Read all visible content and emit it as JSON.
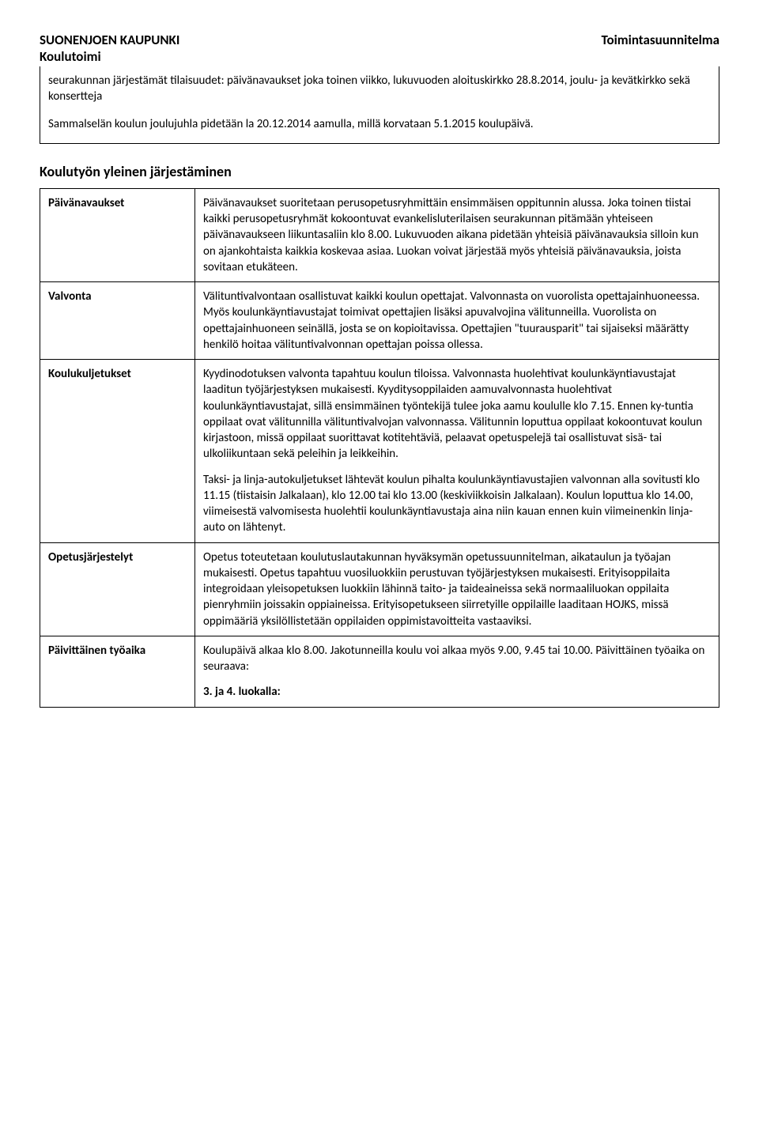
{
  "header": {
    "left_top": "SUONENJOEN KAUPUNKI",
    "right_top": "Toimintasuunnitelma",
    "left_sub": "Koulutoimi"
  },
  "intro": {
    "p1": "seurakunnan järjestämät tilaisuudet: päivänavaukset joka toinen viikko, lukuvuoden aloituskirkko 28.8.2014, joulu- ja kevätkirkko sekä konsertteja",
    "p2": "Sammalselän koulun joulujuhla pidetään la 20.12.2014 aamulla, millä korvataan 5.1.2015 koulupäivä."
  },
  "section_title": "Koulutyön yleinen järjestäminen",
  "rows": {
    "paivanavaukset": {
      "label": "Päivänavaukset",
      "text": "Päivänavaukset suoritetaan perusopetusryhmittäin ensimmäisen oppitunnin alussa. Joka toinen tiistai kaikki perusopetusryhmät kokoontuvat evankelisluterilaisen seurakunnan pitämään yhteiseen päivänavaukseen liikuntasaliin klo 8.00. Lukuvuoden aikana pidetään yhteisiä päivänavauksia silloin kun on ajankohtaista kaikkia koskevaa asiaa. Luokan voivat järjestää myös yhteisiä päivänavauksia, joista sovitaan etukäteen."
    },
    "valvonta": {
      "label": "Valvonta",
      "text": "Välituntivalvontaan osallistuvat kaikki koulun opettajat. Valvonnasta on vuorolista opettajainhuoneessa. Myös koulunkäyntiavustajat toimivat opettajien lisäksi apuvalvojina välitunneilla. Vuorolista on opettajainhuoneen seinällä, josta se on kopioitavissa. Opettajien \"tuurausparit\" tai sijaiseksi määrätty henkilö hoitaa välituntivalvonnan opettajan poissa ollessa."
    },
    "koulukuljetukset": {
      "label": "Koulukuljetukset",
      "p1": "Kyydinodotuksen valvonta tapahtuu koulun tiloissa. Valvonnasta huolehtivat koulunkäyntiavustajat laaditun työjärjestyksen mukaisesti. Kyyditysoppilaiden aamuvalvonnasta huolehtivat koulunkäyntiavustajat, sillä ensimmäinen työntekijä tulee joka aamu koululle klo 7.15. Ennen ky-tuntia oppilaat ovat välitunnilla välituntivalvojan valvonnassa. Välitunnin loputtua oppilaat kokoontuvat koulun kirjastoon, missä oppilaat suorittavat kotitehtäviä, pelaavat opetuspelejä tai osallistuvat sisä- tai ulkoliikuntaan sekä peleihin ja leikkeihin.",
      "p2": "Taksi- ja linja-autokuljetukset lähtevät koulun pihalta koulunkäyntiavustajien valvonnan alla sovitusti klo 11.15 (tiistaisin Jalkalaan), klo 12.00 tai klo 13.00 (keskiviikkoisin Jalkalaan). Koulun loputtua klo 14.00, viimeisestä valvomisesta huolehtii koulunkäyntiavustaja aina niin kauan ennen kuin viimeinenkin linja-auto on lähtenyt."
    },
    "opetusjarjestelyt": {
      "label": "Opetusjärjestelyt",
      "text": "Opetus toteutetaan koulutuslautakunnan hyväksymän opetussuunnitelman, aikataulun ja työajan mukaisesti. Opetus tapahtuu vuosiluokkiin perustuvan työjärjestyksen mukaisesti. Erityisoppilaita integroidaan yleisopetuksen luokkiin lähinnä taito- ja taideaineissa sekä normaaliluokan oppilaita pienryhmiin joissakin oppiaineissa. Erityisopetukseen siirretyille oppilaille laaditaan HOJKS, missä oppimääriä yksilöllistetään oppilaiden oppimistavoitteita vastaaviksi."
    },
    "paivittainen": {
      "label": "Päivittäinen työaika",
      "p1": "Koulupäivä alkaa klo 8.00. Jakotunneilla koulu voi alkaa myös 9.00, 9.45 tai 10.00. Päivittäinen työaika on seuraava:",
      "p2": "3. ja 4. luokalla:"
    }
  }
}
